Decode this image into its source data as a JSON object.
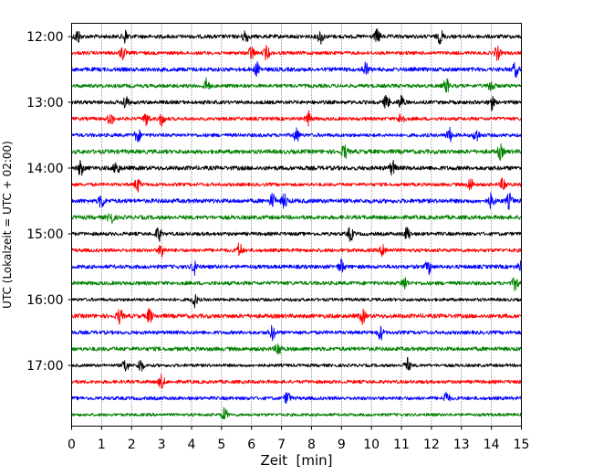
{
  "chart_data": {
    "type": "line",
    "title": "",
    "xlabel": "Zeit  [min]",
    "ylabel": "UTC (Lokalzeit = UTC + 02:00)",
    "xlim": [
      0,
      15
    ],
    "x_ticks": [
      "0",
      "1",
      "2",
      "3",
      "4",
      "5",
      "6",
      "7",
      "8",
      "9",
      "10",
      "11",
      "12",
      "13",
      "14",
      "15"
    ],
    "y_tick_labels": [
      "12:00",
      "13:00",
      "14:00",
      "15:00",
      "16:00",
      "17:00"
    ],
    "grid": "vertical dotted lines at each minute",
    "trace_interval_min": 15,
    "color_cycle": [
      "#000000",
      "#ff0000",
      "#0000ff",
      "#008000"
    ],
    "traces": [
      {
        "start": "12:00",
        "color": "#000000",
        "events_min": [
          0.2,
          1.8,
          5.8,
          8.3,
          10.2,
          12.3
        ]
      },
      {
        "start": "12:15",
        "color": "#ff0000",
        "events_min": [
          1.7,
          6.0,
          6.5,
          14.2
        ]
      },
      {
        "start": "12:30",
        "color": "#0000ff",
        "events_min": [
          6.2,
          9.8,
          14.8
        ]
      },
      {
        "start": "12:45",
        "color": "#008000",
        "events_min": [
          4.5,
          12.5,
          14.0
        ]
      },
      {
        "start": "13:00",
        "color": "#000000",
        "events_min": [
          1.8,
          10.5,
          11.0,
          14.0
        ]
      },
      {
        "start": "13:15",
        "color": "#ff0000",
        "events_min": [
          1.3,
          2.5,
          3.0,
          7.9,
          11.0
        ]
      },
      {
        "start": "13:30",
        "color": "#0000ff",
        "events_min": [
          2.2,
          7.5,
          12.6,
          13.5
        ]
      },
      {
        "start": "13:45",
        "color": "#008000",
        "events_min": [
          9.1,
          14.3
        ]
      },
      {
        "start": "14:00",
        "color": "#000000",
        "events_min": [
          0.3,
          1.5,
          10.7
        ]
      },
      {
        "start": "14:15",
        "color": "#ff0000",
        "events_min": [
          2.2,
          13.3,
          14.4
        ]
      },
      {
        "start": "14:30",
        "color": "#0000ff",
        "events_min": [
          1.0,
          6.7,
          7.1,
          14.0,
          14.6
        ]
      },
      {
        "start": "14:45",
        "color": "#008000",
        "events_min": [
          1.3
        ]
      },
      {
        "start": "15:00",
        "color": "#000000",
        "events_min": [
          2.9,
          9.3,
          11.2
        ]
      },
      {
        "start": "15:15",
        "color": "#ff0000",
        "events_min": [
          3.0,
          5.6,
          10.4
        ]
      },
      {
        "start": "15:30",
        "color": "#0000ff",
        "events_min": [
          4.1,
          9.0,
          11.9,
          15.0
        ]
      },
      {
        "start": "15:45",
        "color": "#008000",
        "events_min": [
          11.1,
          14.8
        ]
      },
      {
        "start": "16:00",
        "color": "#000000",
        "events_min": [
          4.1
        ]
      },
      {
        "start": "16:15",
        "color": "#ff0000",
        "events_min": [
          1.6,
          2.6,
          9.7
        ]
      },
      {
        "start": "16:30",
        "color": "#0000ff",
        "events_min": [
          6.7,
          10.3
        ]
      },
      {
        "start": "16:45",
        "color": "#008000",
        "events_min": [
          6.9
        ]
      },
      {
        "start": "17:00",
        "color": "#000000",
        "events_min": [
          1.8,
          2.3,
          11.2
        ]
      },
      {
        "start": "17:15",
        "color": "#ff0000",
        "events_min": [
          3.0
        ]
      },
      {
        "start": "17:30",
        "color": "#0000ff",
        "events_min": [
          7.2,
          12.5
        ]
      },
      {
        "start": "17:45",
        "color": "#008000",
        "events_min": [
          5.1
        ]
      }
    ]
  }
}
